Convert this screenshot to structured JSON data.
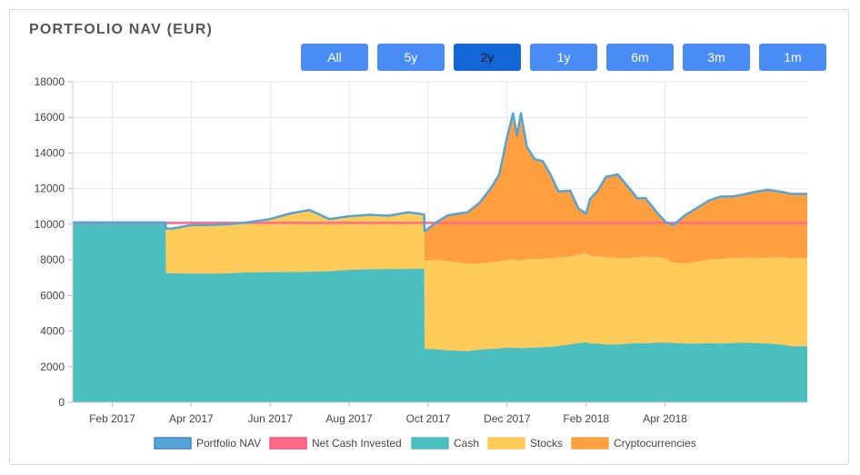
{
  "title": "PORTFOLIO NAV (EUR)",
  "ranges": [
    {
      "label": "All",
      "active": false
    },
    {
      "label": "5y",
      "active": false
    },
    {
      "label": "2y",
      "active": true
    },
    {
      "label": "1y",
      "active": false
    },
    {
      "label": "6m",
      "active": false
    },
    {
      "label": "3m",
      "active": false
    },
    {
      "label": "1m",
      "active": false
    }
  ],
  "colors": {
    "nav": "#56a3d6",
    "net_cash": "#ff6b88",
    "cash": "#4bbfbf",
    "stocks": "#ffcb58",
    "crypto": "#ff9f40"
  },
  "chart_data": {
    "type": "area",
    "title": "PORTFOLIO NAV (EUR)",
    "ylim": [
      0,
      18000
    ],
    "yticks": [
      0,
      2000,
      4000,
      6000,
      8000,
      10000,
      12000,
      14000,
      16000,
      18000
    ],
    "xlim": [
      0,
      18.6
    ],
    "xticks": [
      {
        "label": "Feb 2017",
        "x": 1
      },
      {
        "label": "Apr 2017",
        "x": 3
      },
      {
        "label": "Jun 2017",
        "x": 5
      },
      {
        "label": "Aug 2017",
        "x": 7
      },
      {
        "label": "Oct 2017",
        "x": 9
      },
      {
        "label": "Dec 2017",
        "x": 11
      },
      {
        "label": "Feb 2018",
        "x": 13
      },
      {
        "label": "Apr 2018",
        "x": 15
      }
    ],
    "x": [
      0,
      2.35,
      2.36,
      2.5,
      3,
      3.5,
      4,
      4.5,
      5,
      5.5,
      6,
      6.5,
      7,
      7.5,
      8,
      8.5,
      8.9,
      8.91,
      9.2,
      9.5,
      10,
      10.3,
      10.6,
      10.8,
      11,
      11.15,
      11.25,
      11.35,
      11.5,
      11.7,
      11.9,
      12.1,
      12.3,
      12.6,
      12.8,
      13,
      13.1,
      13.3,
      13.5,
      13.8,
      14.1,
      14.3,
      14.5,
      14.8,
      15,
      15.2,
      15.5,
      15.8,
      16.1,
      16.4,
      16.7,
      17,
      17.3,
      17.6,
      17.9,
      18.2,
      18.6
    ],
    "series": [
      {
        "name": "Cash",
        "values": [
          10100,
          10100,
          7250,
          7250,
          7230,
          7230,
          7250,
          7300,
          7310,
          7320,
          7330,
          7360,
          7440,
          7470,
          7480,
          7490,
          7500,
          3000,
          2980,
          2920,
          2880,
          2960,
          3000,
          3020,
          3080,
          3060,
          3050,
          3040,
          3050,
          3070,
          3100,
          3120,
          3160,
          3250,
          3320,
          3380,
          3300,
          3300,
          3250,
          3250,
          3300,
          3320,
          3320,
          3350,
          3350,
          3340,
          3300,
          3300,
          3320,
          3300,
          3330,
          3350,
          3330,
          3300,
          3250,
          3150,
          3150
        ]
      },
      {
        "name": "Stocks",
        "values": [
          0,
          0,
          2500,
          2500,
          2720,
          2730,
          2760,
          2820,
          2980,
          3280,
          3470,
          2930,
          3010,
          3060,
          3000,
          3180,
          3050,
          4950,
          5020,
          5030,
          4900,
          4840,
          4870,
          4880,
          4920,
          4970,
          4920,
          4940,
          4990,
          4980,
          4950,
          4960,
          4980,
          4930,
          4980,
          5020,
          4920,
          4900,
          4910,
          4850,
          4800,
          4830,
          4850,
          4800,
          4750,
          4500,
          4500,
          4600,
          4700,
          4750,
          4780,
          4780,
          4800,
          4830,
          4890,
          4950,
          4950
        ]
      },
      {
        "name": "Cryptocurrencies",
        "values": [
          0,
          0,
          0,
          0,
          0,
          0,
          0,
          0,
          0,
          0,
          0,
          0,
          0,
          0,
          0,
          0,
          0,
          1650,
          2100,
          2550,
          2900,
          3400,
          4200,
          4900,
          6900,
          8200,
          7000,
          8250,
          6300,
          5600,
          5500,
          4700,
          3700,
          3700,
          2600,
          2200,
          3200,
          3700,
          4500,
          4700,
          3900,
          3300,
          3300,
          2500,
          2050,
          2100,
          2700,
          3000,
          3300,
          3500,
          3450,
          3550,
          3700,
          3800,
          3700,
          3600,
          3600
        ]
      },
      {
        "name": "Portfolio NAV",
        "values": [
          10100,
          10100,
          9750,
          9750,
          9950,
          9960,
          10010,
          10120,
          10290,
          10600,
          10800,
          10290,
          10450,
          10530,
          10480,
          10670,
          10550,
          9600,
          10100,
          10500,
          10680,
          11200,
          12070,
          12800,
          14900,
          16230,
          14970,
          16230,
          14340,
          13650,
          13550,
          12780,
          11840,
          11880,
          10900,
          10600,
          11420,
          11900,
          12660,
          12800,
          12000,
          11450,
          11470,
          10650,
          10150,
          9940,
          10500,
          10900,
          11320,
          11550,
          11560,
          11680,
          11830,
          11930,
          11840,
          11700,
          11700
        ]
      },
      {
        "name": "Net Cash Invested",
        "values": [
          10080,
          10080,
          10080,
          10080,
          10080,
          10080,
          10080,
          10080,
          10080,
          10080,
          10080,
          10080,
          10080,
          10080,
          10080,
          10080,
          10080,
          10080,
          10080,
          10080,
          10080,
          10080,
          10080,
          10080,
          10080,
          10080,
          10080,
          10080,
          10080,
          10080,
          10080,
          10080,
          10080,
          10080,
          10080,
          10080,
          10080,
          10080,
          10080,
          10080,
          10080,
          10080,
          10080,
          10080,
          10080,
          10080,
          10080,
          10080,
          10080,
          10080,
          10080,
          10080,
          10080,
          10080,
          10080,
          10080,
          10080
        ]
      }
    ],
    "legend": [
      "Portfolio NAV",
      "Net Cash Invested",
      "Cash",
      "Stocks",
      "Cryptocurrencies"
    ],
    "legend_position": "bottom",
    "grid": true
  }
}
